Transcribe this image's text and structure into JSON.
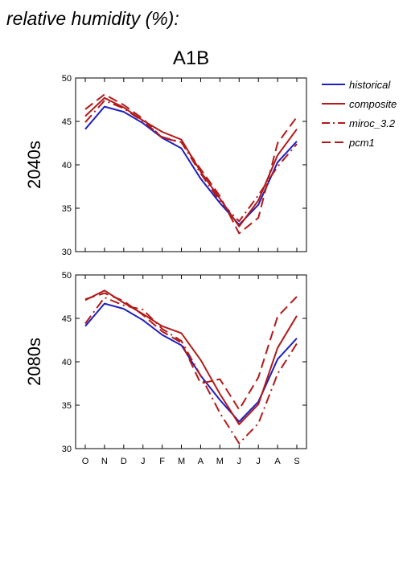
{
  "heading": "relative humidity (%):",
  "chart_data": {
    "type": "line",
    "title": "A1B",
    "categories": [
      "O",
      "N",
      "D",
      "J",
      "F",
      "M",
      "A",
      "M",
      "J",
      "J",
      "A",
      "S"
    ],
    "ylim": [
      30,
      50
    ],
    "yticks": [
      30,
      35,
      40,
      45,
      50
    ],
    "grid": false,
    "legend_position": "top-right",
    "legend": [
      {
        "name": "historical",
        "color": "#1f1fbf",
        "style": "solid"
      },
      {
        "name": "composite",
        "color": "#b21a1a",
        "style": "solid"
      },
      {
        "name": "miroc_3.2",
        "color": "#b21a1a",
        "style": "dashdot"
      },
      {
        "name": "pcm1",
        "color": "#b21a1a",
        "style": "dashed"
      }
    ],
    "panels": [
      {
        "label": "2040s",
        "series": [
          {
            "name": "historical",
            "values": [
              44.1,
              46.7,
              46.1,
              44.8,
              43.1,
              41.9,
              38.4,
              35.6,
              33.1,
              35.4,
              40.3,
              42.7
            ]
          },
          {
            "name": "composite",
            "values": [
              45.6,
              47.7,
              46.6,
              45.1,
              43.8,
              42.9,
              39.2,
              36.1,
              32.9,
              35.9,
              41.1,
              44.1
            ]
          },
          {
            "name": "miroc_3.2",
            "values": [
              44.9,
              47.4,
              46.5,
              45.0,
              43.2,
              42.6,
              39.0,
              35.8,
              33.5,
              36.5,
              39.8,
              42.4
            ]
          },
          {
            "name": "pcm1",
            "values": [
              46.4,
              48.1,
              46.9,
              45.3,
              43.1,
              42.6,
              39.5,
              36.4,
              32.1,
              33.9,
              42.5,
              45.5
            ]
          }
        ]
      },
      {
        "label": "2080s",
        "series": [
          {
            "name": "historical",
            "values": [
              44.1,
              46.7,
              46.1,
              44.8,
              43.1,
              41.9,
              38.4,
              35.6,
              33.1,
              35.4,
              40.3,
              42.7
            ]
          },
          {
            "name": "composite",
            "values": [
              47.1,
              48.2,
              46.8,
              45.5,
              44.1,
              43.3,
              40.2,
              36.3,
              32.8,
              35.1,
              41.6,
              45.3
            ]
          },
          {
            "name": "miroc_3.2",
            "values": [
              44.4,
              47.4,
              46.5,
              46.0,
              43.8,
              42.4,
              38.4,
              34.1,
              30.6,
              32.9,
              38.6,
              42.1
            ]
          },
          {
            "name": "pcm1",
            "values": [
              47.2,
              47.9,
              47.0,
              45.4,
              43.5,
              42.2,
              37.5,
              38.0,
              34.5,
              38.2,
              45.2,
              47.5
            ]
          }
        ]
      }
    ]
  }
}
